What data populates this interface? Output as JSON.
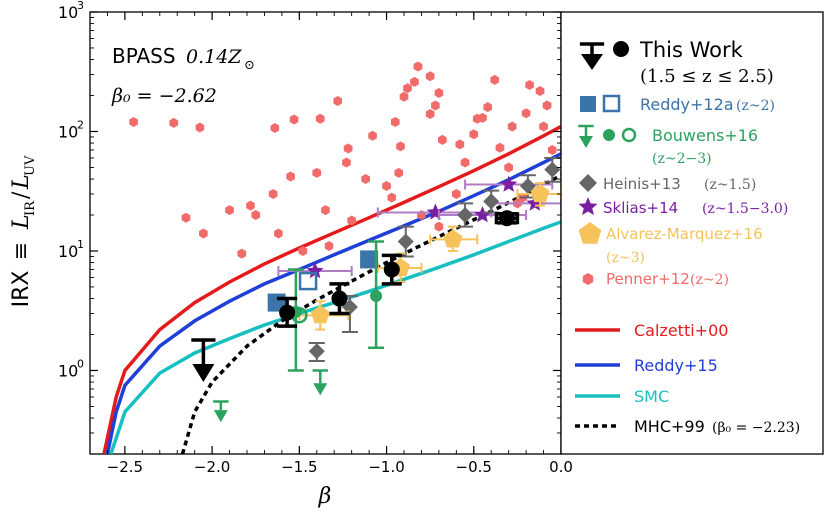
{
  "chart_data": {
    "type": "scatter",
    "xlabel": "β",
    "ylabel": "IRX ≡ L_IR/L_UV",
    "ylabel_parts": {
      "main": "IRX",
      "equiv": "≡",
      "num": "L",
      "num_sub": "IR",
      "den": "L",
      "den_sub": "UV"
    },
    "xlim": [
      -2.7,
      0.0
    ],
    "ylim": [
      0.2,
      1000
    ],
    "yscale": "log",
    "xticks": [
      "−2.5",
      "−2.0",
      "−1.5",
      "−1.0",
      "−0.5",
      "0.0"
    ],
    "xtick_values": [
      -2.5,
      -2.0,
      -1.5,
      -1.0,
      -0.5,
      0.0
    ],
    "yticks": [
      {
        "base": "10",
        "exp": "0",
        "value": 1
      },
      {
        "base": "10",
        "exp": "1",
        "value": 10
      },
      {
        "base": "10",
        "exp": "2",
        "value": 100
      },
      {
        "base": "10",
        "exp": "3",
        "value": 1000
      }
    ],
    "annotation": {
      "line1_text": "BPASS",
      "line1_math": "0.14Z",
      "line1_sub": "⊙",
      "line2": "β₀ = −2.62"
    },
    "curves": [
      {
        "name": "Calzetti+00",
        "color": "#e41a1c",
        "style": "solid",
        "points": [
          [
            -2.62,
            0.2
          ],
          [
            -2.55,
            0.6
          ],
          [
            -2.5,
            1.0
          ],
          [
            -2.3,
            2.2
          ],
          [
            -2.1,
            3.7
          ],
          [
            -1.9,
            5.5
          ],
          [
            -1.7,
            7.8
          ],
          [
            -1.5,
            10.6
          ],
          [
            -1.3,
            14.2
          ],
          [
            -1.1,
            19.0
          ],
          [
            -0.9,
            25.5
          ],
          [
            -0.7,
            34.5
          ],
          [
            -0.5,
            47.0
          ],
          [
            -0.3,
            65.0
          ],
          [
            -0.1,
            92.0
          ],
          [
            0.0,
            110.0
          ]
        ]
      },
      {
        "name": "Reddy+15",
        "color": "#1f3fd6",
        "style": "solid",
        "points": [
          [
            -2.6,
            0.2
          ],
          [
            -2.55,
            0.45
          ],
          [
            -2.5,
            0.75
          ],
          [
            -2.3,
            1.6
          ],
          [
            -2.1,
            2.6
          ],
          [
            -1.9,
            3.8
          ],
          [
            -1.7,
            5.3
          ],
          [
            -1.5,
            7.0
          ],
          [
            -1.3,
            9.3
          ],
          [
            -1.1,
            12.3
          ],
          [
            -0.9,
            16.2
          ],
          [
            -0.7,
            21.5
          ],
          [
            -0.5,
            29.0
          ],
          [
            -0.3,
            39.5
          ],
          [
            -0.1,
            55.0
          ],
          [
            0.0,
            65.0
          ]
        ]
      },
      {
        "name": "SMC",
        "color": "#17bfc1",
        "style": "solid",
        "points": [
          [
            -2.58,
            0.2
          ],
          [
            -2.5,
            0.45
          ],
          [
            -2.3,
            0.95
          ],
          [
            -2.1,
            1.4
          ],
          [
            -1.9,
            1.85
          ],
          [
            -1.7,
            2.4
          ],
          [
            -1.5,
            3.0
          ],
          [
            -1.3,
            3.7
          ],
          [
            -1.1,
            4.6
          ],
          [
            -0.9,
            5.8
          ],
          [
            -0.7,
            7.3
          ],
          [
            -0.5,
            9.3
          ],
          [
            -0.3,
            12.0
          ],
          [
            -0.1,
            15.5
          ],
          [
            0.0,
            17.5
          ]
        ]
      },
      {
        "name": "MHC+99",
        "label_math": "(β₀ = −2.23)",
        "color": "#000000",
        "style": "dotted",
        "points": [
          [
            -2.17,
            0.2
          ],
          [
            -2.1,
            0.45
          ],
          [
            -2.0,
            0.8
          ],
          [
            -1.8,
            1.6
          ],
          [
            -1.6,
            2.6
          ],
          [
            -1.4,
            3.9
          ],
          [
            -1.2,
            5.6
          ],
          [
            -1.0,
            8.0
          ],
          [
            -0.8,
            11.2
          ],
          [
            -0.6,
            15.5
          ],
          [
            -0.4,
            21.5
          ],
          [
            -0.2,
            30.0
          ],
          [
            0.0,
            43.0
          ]
        ]
      }
    ],
    "series": [
      {
        "name": "This Work",
        "label_math": "(1.5 ≤ z ≤ 2.5)",
        "color": "#000000",
        "marker": "circle",
        "points": [
          {
            "x": -1.57,
            "y": 3.05,
            "ylo": 2.35,
            "yhi": 4.0
          },
          {
            "x": -1.27,
            "y": 4.0,
            "ylo": 3.0,
            "yhi": 5.3
          },
          {
            "x": -0.97,
            "y": 7.0,
            "ylo": 5.3,
            "yhi": 9.2
          },
          {
            "x": -0.31,
            "y": 18.8,
            "ylo": 17.2,
            "yhi": 20.5,
            "xlo": -0.37,
            "xhi": -0.25
          }
        ],
        "upper_limits": [
          {
            "x": -2.05,
            "y": 1.8,
            "to": 0.8
          }
        ]
      },
      {
        "name": "Reddy+12a",
        "label_math": "(z~2)",
        "color": "#3a74a8",
        "marker": "square",
        "filled": [
          {
            "x": -1.63,
            "y": 3.7
          },
          {
            "x": -1.1,
            "y": 8.5
          }
        ],
        "open": [
          {
            "x": -1.45,
            "y": 5.6
          }
        ]
      },
      {
        "name": "Bouwens+16",
        "label_math": "(z~2−3)",
        "color": "#2ca25f",
        "marker": "circle",
        "points": [
          {
            "x": -1.52,
            "y": 3.1,
            "ylo": 1.0,
            "yhi": 7.0
          },
          {
            "x": -1.06,
            "y": 4.2,
            "ylo": 1.55,
            "yhi": 12.0
          }
        ],
        "open": [
          {
            "x": -1.5,
            "y": 2.9
          }
        ],
        "upper_limits": [
          {
            "x": -1.38,
            "y": 1.0,
            "to": 0.62
          },
          {
            "x": -1.95,
            "y": 0.55,
            "to": 0.37
          }
        ]
      },
      {
        "name": "Heinis+13",
        "label_math": "(z~1.5)",
        "color": "#666666",
        "marker": "diamond",
        "points": [
          {
            "x": -1.4,
            "y": 1.45,
            "ylo": 1.2,
            "yhi": 1.7
          },
          {
            "x": -1.21,
            "y": 3.4,
            "ylo": 2.1,
            "yhi": 4.2
          },
          {
            "x": -0.89,
            "y": 12.0,
            "ylo": 9.0,
            "yhi": 16.0
          },
          {
            "x": -0.55,
            "y": 20.0,
            "ylo": 16.0,
            "yhi": 25.0
          },
          {
            "x": -0.4,
            "y": 26.0,
            "ylo": 21.0,
            "yhi": 32.0
          },
          {
            "x": -0.19,
            "y": 35.0,
            "ylo": 28.0,
            "yhi": 43.0
          },
          {
            "x": -0.05,
            "y": 48.0,
            "ylo": 38.0,
            "yhi": 60.0
          }
        ]
      },
      {
        "name": "Sklias+14",
        "label_math": "(z~1.5−3.0)",
        "color": "#7b1fa2",
        "marker": "star",
        "points": [
          {
            "x": -1.41,
            "y": 6.8,
            "xlo": -1.62,
            "xhi": -1.2
          },
          {
            "x": -0.72,
            "y": 21.0,
            "xlo": -1.05,
            "xhi": -0.4
          },
          {
            "x": -0.45,
            "y": 20.0,
            "xlo": -0.7,
            "xhi": -0.2
          },
          {
            "x": -0.3,
            "y": 36.0,
            "xlo": -0.55,
            "xhi": -0.05
          },
          {
            "x": -0.15,
            "y": 25.0,
            "xlo": -0.4,
            "xhi": 0.0
          }
        ]
      },
      {
        "name": "Alvarez-Marquez+16",
        "label_math": "(z~3)",
        "color": "#f6c35b",
        "marker": "pentagon",
        "points": [
          {
            "x": -1.38,
            "y": 2.9,
            "ylo": 2.2,
            "yhi": 3.8,
            "xlo": -1.5,
            "xhi": -1.22
          },
          {
            "x": -0.92,
            "y": 7.2,
            "ylo": 5.5,
            "yhi": 9.5,
            "xlo": -1.05,
            "xhi": -0.8
          },
          {
            "x": -0.62,
            "y": 12.5,
            "ylo": 10.0,
            "yhi": 16.0,
            "xlo": -0.75,
            "xhi": -0.48
          },
          {
            "x": -0.12,
            "y": 30.0,
            "ylo": 24.0,
            "yhi": 37.0,
            "xlo": -0.25,
            "xhi": 0.0
          }
        ]
      },
      {
        "name": "Penner+12",
        "label_math": "(z~2)",
        "color": "#f26b6b",
        "marker": "hexagon",
        "points": [
          [
            -2.45,
            120
          ],
          [
            -2.22,
            118
          ],
          [
            -2.07,
            108
          ],
          [
            -1.64,
            107
          ],
          [
            -1.53,
            126
          ],
          [
            -1.38,
            128
          ],
          [
            -1.28,
            180
          ],
          [
            -1.22,
            72
          ],
          [
            -1.23,
            55
          ],
          [
            -1.08,
            92
          ],
          [
            -0.95,
            120
          ],
          [
            -0.92,
            75
          ],
          [
            -0.9,
            195
          ],
          [
            -0.88,
            230
          ],
          [
            -0.84,
            260
          ],
          [
            -0.75,
            140
          ],
          [
            -0.72,
            165
          ],
          [
            -0.58,
            78
          ],
          [
            -0.5,
            95
          ],
          [
            -0.48,
            128
          ],
          [
            -0.45,
            130
          ],
          [
            -0.35,
            73
          ],
          [
            -0.3,
            50
          ],
          [
            -0.22,
            28
          ],
          [
            -0.2,
            142
          ],
          [
            -0.12,
            218
          ],
          [
            -0.08,
            165
          ],
          [
            -0.82,
            350
          ],
          [
            -0.75,
            290
          ],
          [
            -0.7,
            210
          ],
          [
            -0.68,
            85
          ],
          [
            -0.55,
            55
          ],
          [
            -0.42,
            160
          ],
          [
            -0.38,
            270
          ],
          [
            -0.28,
            110
          ],
          [
            -0.18,
            245
          ],
          [
            -0.1,
            110
          ],
          [
            -0.05,
            70
          ],
          [
            -1.55,
            42
          ],
          [
            -1.65,
            30
          ],
          [
            -1.78,
            24
          ],
          [
            -1.4,
            45
          ],
          [
            -1.62,
            14
          ],
          [
            -1.12,
            40
          ],
          [
            -1.0,
            35
          ],
          [
            -0.93,
            45
          ],
          [
            -1.33,
            11
          ],
          [
            -1.75,
            20
          ],
          [
            -1.83,
            9.5
          ],
          [
            -2.15,
            19
          ],
          [
            -2.05,
            14
          ],
          [
            -1.9,
            22
          ],
          [
            -1.35,
            22
          ],
          [
            -0.97,
            28
          ],
          [
            -0.6,
            30
          ],
          [
            -0.25,
            25
          ],
          [
            -0.7,
            16
          ],
          [
            -1.2,
            18
          ],
          [
            -1.48,
            10
          ],
          [
            -0.8,
            20
          ]
        ]
      }
    ],
    "legend": {
      "placement": "right",
      "entries": [
        "This Work",
        "(1.5 ≤ z ≤ 2.5)",
        "Reddy+12a",
        "(z~2)",
        "Bouwens+16",
        "(z~2−3)",
        "Heinis+13",
        "(z~1.5)",
        "Sklias+14",
        "(z~1.5−3.0)",
        "Alvarez-Marquez+16",
        "(z~3)",
        "Penner+12",
        "(z~2)",
        "Calzetti+00",
        "Reddy+15",
        "SMC",
        "MHC+99",
        "(β₀ = −2.23)"
      ]
    }
  }
}
